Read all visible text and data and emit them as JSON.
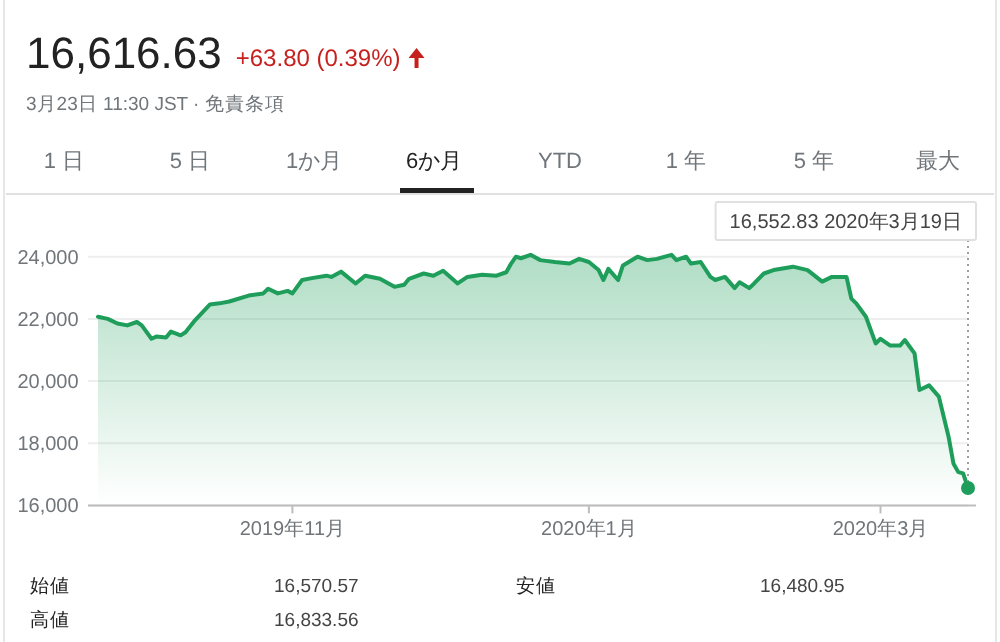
{
  "chart_data": {
    "type": "line",
    "title": "16,616.63",
    "subtitle": "+63.80 (0.39%)",
    "annotations": [
      "3月23日 11:30 JST · 免責条項",
      "1 日",
      "5 日",
      "1か月",
      "6か月",
      "YTD",
      "1 年",
      "5 年",
      "最大",
      "始値",
      "16,570.57",
      "安値",
      "16,480.95",
      "高値",
      "16,833.56",
      "16,552.83  2020年3月19日"
    ],
    "x": [
      "2019-09-22",
      "2019-09-24",
      "2019-09-26",
      "2019-09-28",
      "2019-09-30",
      "2019-10-01",
      "2019-10-03",
      "2019-10-04",
      "2019-10-06",
      "2019-10-07",
      "2019-10-09",
      "2019-10-10",
      "2019-10-12",
      "2019-10-15",
      "2019-10-17",
      "2019-10-19",
      "2019-10-23",
      "2019-10-26",
      "2019-10-27",
      "2019-10-29",
      "2019-10-31",
      "2019-11-01",
      "2019-11-03",
      "2019-11-05",
      "2019-11-08",
      "2019-11-09",
      "2019-11-11",
      "2019-11-14",
      "2019-11-16",
      "2019-11-19",
      "2019-11-22",
      "2019-11-24",
      "2019-11-25",
      "2019-11-28",
      "2019-11-30",
      "2019-12-02",
      "2019-12-05",
      "2019-12-07",
      "2019-12-10",
      "2019-12-13",
      "2019-12-15",
      "2019-12-16",
      "2019-12-17",
      "2019-12-18",
      "2019-12-20",
      "2019-12-22",
      "2019-12-25",
      "2019-12-28",
      "2019-12-30",
      "2020-01-01",
      "2020-01-03",
      "2020-01-04",
      "2020-01-05",
      "2020-01-07",
      "2020-01-08",
      "2020-01-11",
      "2020-01-13",
      "2020-01-15",
      "2020-01-18",
      "2020-01-19",
      "2020-01-21",
      "2020-01-22",
      "2020-01-24",
      "2020-01-26",
      "2020-01-27",
      "2020-01-29",
      "2020-01-31",
      "2020-02-01",
      "2020-02-03",
      "2020-02-04",
      "2020-02-06",
      "2020-02-08",
      "2020-02-12",
      "2020-02-15",
      "2020-02-18",
      "2020-02-20",
      "2020-02-23",
      "2020-02-24",
      "2020-02-25",
      "2020-02-27",
      "2020-02-29",
      "2020-03-01",
      "2020-03-03",
      "2020-03-05",
      "2020-03-06",
      "2020-03-08",
      "2020-03-09",
      "2020-03-11",
      "2020-03-13",
      "2020-03-15",
      "2020-03-16",
      "2020-03-17",
      "2020-03-18",
      "2020-03-19"
    ],
    "values": [
      22070,
      22000,
      21850,
      21790,
      21900,
      21790,
      21360,
      21430,
      21400,
      21590,
      21470,
      21570,
      21960,
      22460,
      22500,
      22560,
      22750,
      22820,
      22970,
      22820,
      22900,
      22820,
      23250,
      23310,
      23390,
      23350,
      23520,
      23140,
      23390,
      23290,
      23030,
      23100,
      23290,
      23460,
      23390,
      23550,
      23140,
      23350,
      23420,
      23390,
      23500,
      23780,
      24000,
      23950,
      24060,
      23890,
      23830,
      23780,
      23930,
      23830,
      23570,
      23250,
      23610,
      23250,
      23720,
      24000,
      23890,
      23930,
      24060,
      23890,
      24000,
      23780,
      23830,
      23350,
      23250,
      23350,
      22990,
      23180,
      22990,
      23140,
      23460,
      23570,
      23680,
      23570,
      23200,
      23350,
      23350,
      22650,
      22500,
      22070,
      21210,
      21360,
      21140,
      21140,
      21320,
      20890,
      19710,
      19860,
      19500,
      18210,
      17350,
      17070,
      17030,
      16560
    ],
    "color": "#1e9e5a",
    "xlim": [
      "2019-09-22",
      "2020-03-19"
    ],
    "ylim": [
      16000,
      24100
    ],
    "xticks": [
      {
        "value": "2019-11-01",
        "label": "2019年11月"
      },
      {
        "value": "2020-01-01",
        "label": "2020年1月"
      },
      {
        "value": "2020-03-01",
        "label": "2020年3月"
      }
    ],
    "yticks": [
      {
        "value": 16000,
        "label": "16,000"
      },
      {
        "value": 18000,
        "label": "18,000"
      },
      {
        "value": 20000,
        "label": "20,000"
      },
      {
        "value": 22000,
        "label": "22,000"
      },
      {
        "value": 24000,
        "label": "24,000"
      }
    ],
    "grid": "y"
  }
}
